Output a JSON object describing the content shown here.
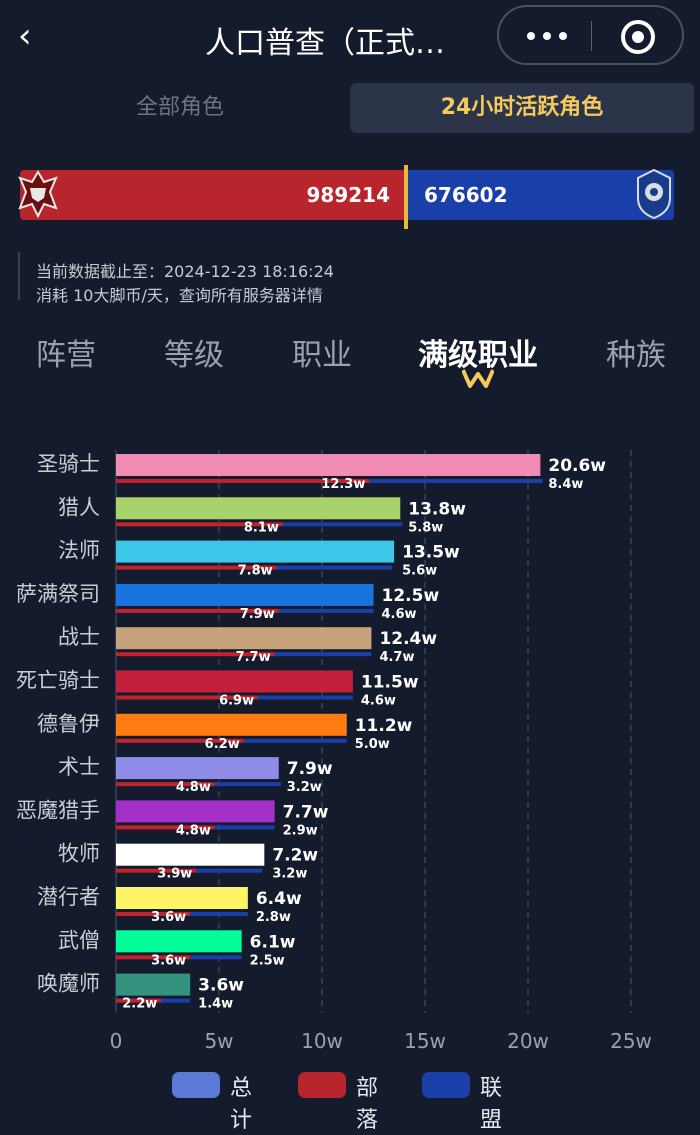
{
  "header": {
    "title": "人口普查（正式…"
  },
  "segments": {
    "all": "全部角色",
    "active24h": "24小时活跃角色"
  },
  "faction": {
    "horde_value": "989214",
    "alliance_value": "676602",
    "horde_share": 0.594
  },
  "info": {
    "line1": "当前数据截止至：2024-12-23 18:16:24",
    "line2": "消耗 10大脚币/天，查询所有服务器详情"
  },
  "nav": {
    "tabs": [
      "阵营",
      "等级",
      "职业",
      "满级职业",
      "种族"
    ],
    "active_index": 3
  },
  "colors": {
    "horde": "#b8252d",
    "alliance": "#1b3fa8",
    "accent": "#f4c95d",
    "total_legend": "#5b7ad6"
  },
  "chart_data": {
    "type": "bar",
    "orientation": "horizontal",
    "categories": [
      "圣骑士",
      "猎人",
      "法师",
      "萨满祭司",
      "战士",
      "死亡骑士",
      "德鲁伊",
      "术士",
      "恶魔猎手",
      "牧师",
      "潜行者",
      "武僧",
      "唤魔师"
    ],
    "category_colors": [
      "#f08cb4",
      "#a8d36a",
      "#3ec6e8",
      "#1a74e0",
      "#c8a27a",
      "#c4203c",
      "#ff7d10",
      "#8f8ce8",
      "#a330c9",
      "#ffffff",
      "#fff468",
      "#00ff98",
      "#33937f"
    ],
    "series": [
      {
        "name": "总计",
        "values": [
          20.6,
          13.8,
          13.5,
          12.5,
          12.4,
          11.5,
          11.2,
          7.9,
          7.7,
          7.2,
          6.4,
          6.1,
          3.6
        ],
        "labels": [
          "20.6w",
          "13.8w",
          "13.5w",
          "12.5w",
          "12.4w",
          "11.5w",
          "11.2w",
          "7.9w",
          "7.7w",
          "7.2w",
          "6.4w",
          "6.1w",
          "3.6w"
        ]
      },
      {
        "name": "部落",
        "values": [
          12.3,
          8.1,
          7.8,
          7.9,
          7.7,
          6.9,
          6.2,
          4.8,
          4.8,
          3.9,
          3.6,
          3.6,
          2.2
        ],
        "labels": [
          "12.3w",
          "8.1w",
          "7.8w",
          "7.9w",
          "7.7w",
          "6.9w",
          "6.2w",
          "4.8w",
          "4.8w",
          "3.9w",
          "3.6w",
          "3.6w",
          "2.2w"
        ]
      },
      {
        "name": "联盟",
        "values": [
          8.4,
          5.8,
          5.6,
          4.6,
          4.7,
          4.6,
          5.0,
          3.2,
          2.9,
          3.2,
          2.8,
          2.5,
          1.4
        ],
        "labels": [
          "8.4w",
          "5.8w",
          "5.6w",
          "4.6w",
          "4.7w",
          "4.6w",
          "5.0w",
          "3.2w",
          "2.9w",
          "3.2w",
          "2.8w",
          "2.5w",
          "1.4w"
        ]
      }
    ],
    "x_ticks": [
      "0",
      "5w",
      "10w",
      "15w",
      "20w",
      "25w"
    ],
    "xlim": [
      0,
      25
    ],
    "grid": true,
    "legend_position": "bottom"
  }
}
